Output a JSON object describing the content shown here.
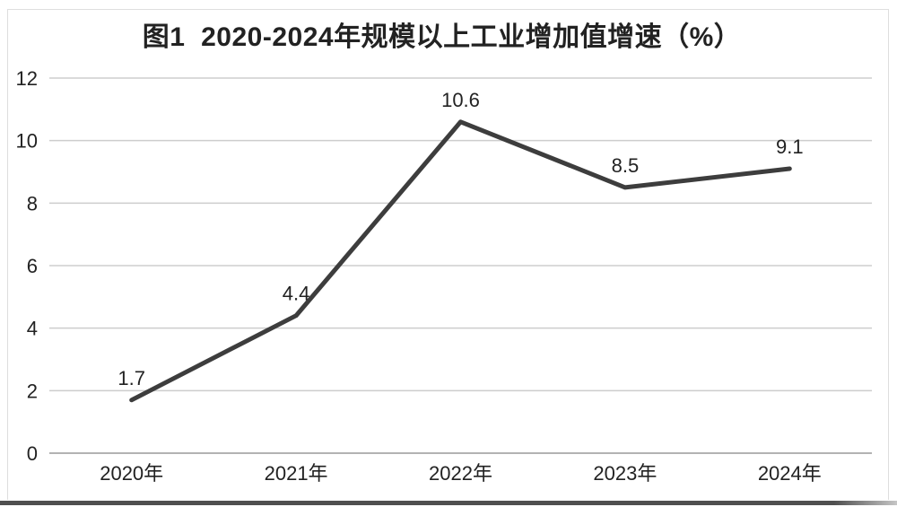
{
  "chart_data": {
    "type": "line",
    "title": "图1  2020-2024年规模以上工业增加值增速（%）",
    "categories": [
      "2020年",
      "2021年",
      "2022年",
      "2023年",
      "2024年"
    ],
    "values": [
      1.7,
      4.4,
      10.6,
      8.5,
      9.1
    ],
    "data_labels": [
      "1.7",
      "4.4",
      "10.6",
      "8.5",
      "9.1"
    ],
    "xlabel": "",
    "ylabel": "",
    "y_ticks": [
      0,
      2,
      4,
      6,
      8,
      10,
      12
    ],
    "ylim": [
      0,
      12
    ],
    "grid": "horizontal-only",
    "legend": "none",
    "line_width": 5
  },
  "colors": {
    "background": "#ffffff",
    "line": "#3d3d3d",
    "gridline": "#cdcdcd",
    "axis_line": "#a8a8a8",
    "text": "#222222",
    "frame_border": "#dedede",
    "bottom_edge": "#4f4f4f"
  }
}
